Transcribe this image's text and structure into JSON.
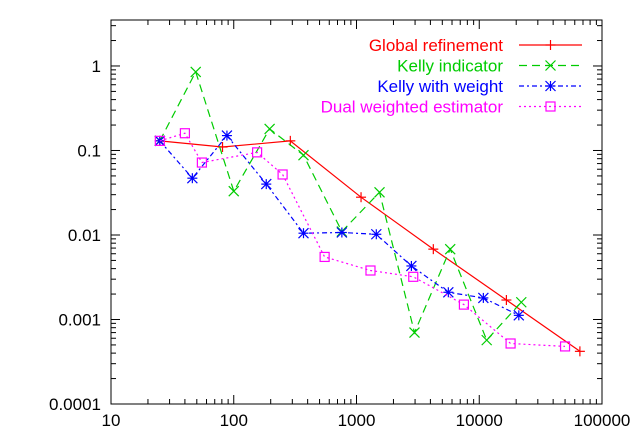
{
  "chart_data": {
    "type": "line",
    "title": "",
    "xlabel": "",
    "ylabel": "",
    "x_scale": "log",
    "y_scale": "log",
    "xlim": [
      10,
      100000
    ],
    "ylim": [
      0.0001,
      3.5
    ],
    "grid": false,
    "legend_position": "top-right",
    "x_ticks": [
      {
        "value": 10,
        "label": "10"
      },
      {
        "value": 100,
        "label": "100"
      },
      {
        "value": 1000,
        "label": "1000"
      },
      {
        "value": 10000,
        "label": "10000"
      },
      {
        "value": 100000,
        "label": "100000"
      }
    ],
    "y_ticks": [
      {
        "value": 0.0001,
        "label": "0.0001"
      },
      {
        "value": 0.001,
        "label": "0.001"
      },
      {
        "value": 0.01,
        "label": "0.01"
      },
      {
        "value": 0.1,
        "label": "0.1"
      },
      {
        "value": 1,
        "label": "1"
      }
    ],
    "series": [
      {
        "name": "Global refinement",
        "color": "#ff0000",
        "dash": "solid",
        "marker": "plus",
        "x": [
          25,
          81,
          289,
          1089,
          4225,
          16641,
          66049
        ],
        "y": [
          0.13,
          0.11,
          0.13,
          0.028,
          0.0068,
          0.0017,
          0.00042
        ]
      },
      {
        "name": "Kelly indicator",
        "color": "#00cc00",
        "dash": "dashed",
        "marker": "cross",
        "x": [
          25,
          49,
          100,
          196,
          370,
          760,
          1540,
          2968,
          5800,
          11500,
          22000
        ],
        "y": [
          0.13,
          0.85,
          0.033,
          0.18,
          0.088,
          0.011,
          0.032,
          0.0007,
          0.0068,
          0.00057,
          0.0016
        ]
      },
      {
        "name": "Kelly with weight",
        "color": "#0000ff",
        "dash": "dotdash",
        "marker": "star",
        "x": [
          25,
          46,
          88,
          184,
          370,
          760,
          1450,
          2800,
          5600,
          10800,
          21000
        ],
        "y": [
          0.13,
          0.047,
          0.15,
          0.04,
          0.0105,
          0.0107,
          0.0102,
          0.0043,
          0.0021,
          0.0018,
          0.00112
        ]
      },
      {
        "name": "Dual weighted estimator",
        "color": "#ff00ff",
        "dash": "dotted",
        "marker": "square",
        "x": [
          25,
          40,
          55,
          155,
          250,
          550,
          1300,
          2900,
          7500,
          18000,
          50000
        ],
        "y": [
          0.13,
          0.16,
          0.072,
          0.095,
          0.052,
          0.0055,
          0.0038,
          0.0032,
          0.0015,
          0.00052,
          0.00048
        ]
      }
    ]
  }
}
